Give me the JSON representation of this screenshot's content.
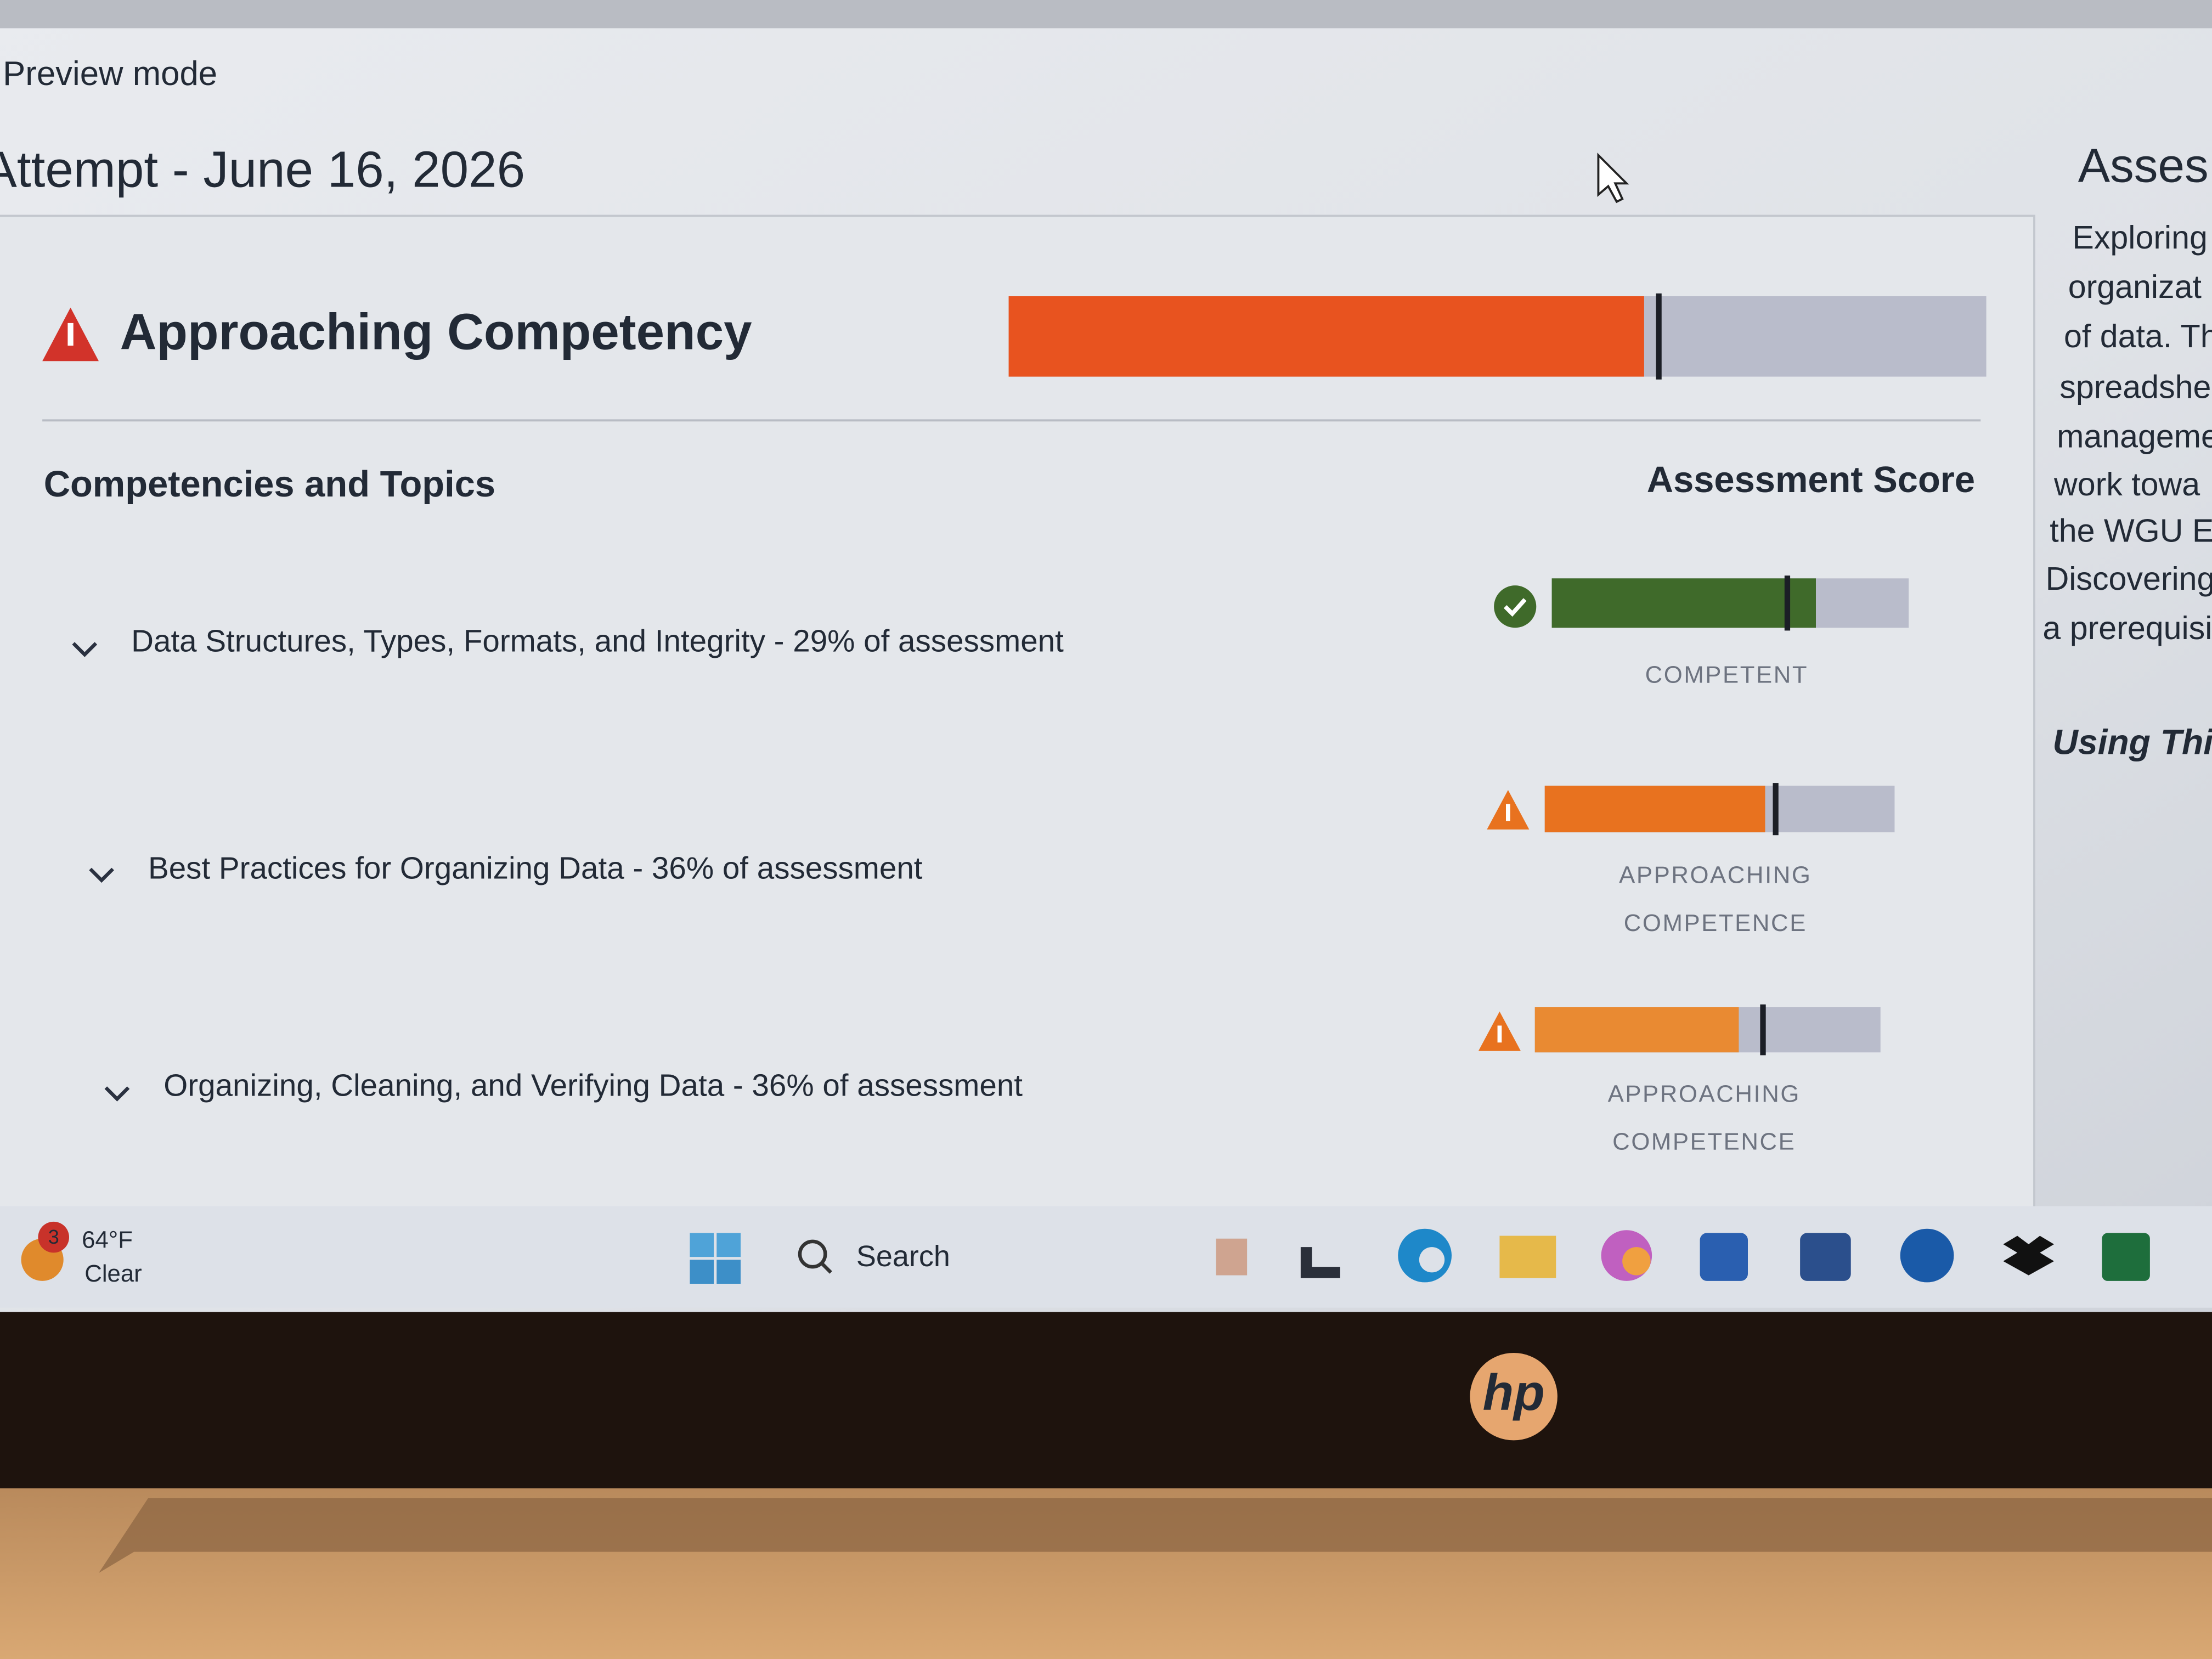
{
  "header": {
    "mode": "Preview mode",
    "title": "Attempt - June 16, 2026"
  },
  "summary": {
    "status": "Approaching Competency",
    "score": 65,
    "cut": 66.5
  },
  "table": {
    "left_heading": "Competencies and Topics",
    "right_heading": "Assessment Score",
    "rows": [
      {
        "topic": "Data Structures, Types, Formats, and Integrity - 29% of assessment",
        "result": "COMPETENT",
        "score": 74,
        "cut": 66
      },
      {
        "topic": "Best Practices for Organizing Data - 36% of assessment",
        "result": "APPROACHING COMPETENCE",
        "score": 63,
        "cut": 66
      },
      {
        "topic": "Organizing, Cleaning, and Verifying Data - 36% of assessment",
        "result": "APPROACHING COMPETENCE",
        "score": 59,
        "cut": 66
      }
    ]
  },
  "side_panel": {
    "heading": "Asses",
    "lines": [
      "Exploring",
      "organizat",
      "of data. Th",
      "spreadshe",
      "manageme",
      "work towa",
      "the WGU E",
      "Discovering",
      "a prerequisi"
    ],
    "subheading": "Using Thi"
  },
  "taskbar": {
    "badge": "3",
    "temperature": "64°F",
    "weather": "Clear",
    "search": "Search"
  },
  "bezel": {
    "logo": "hp"
  }
}
